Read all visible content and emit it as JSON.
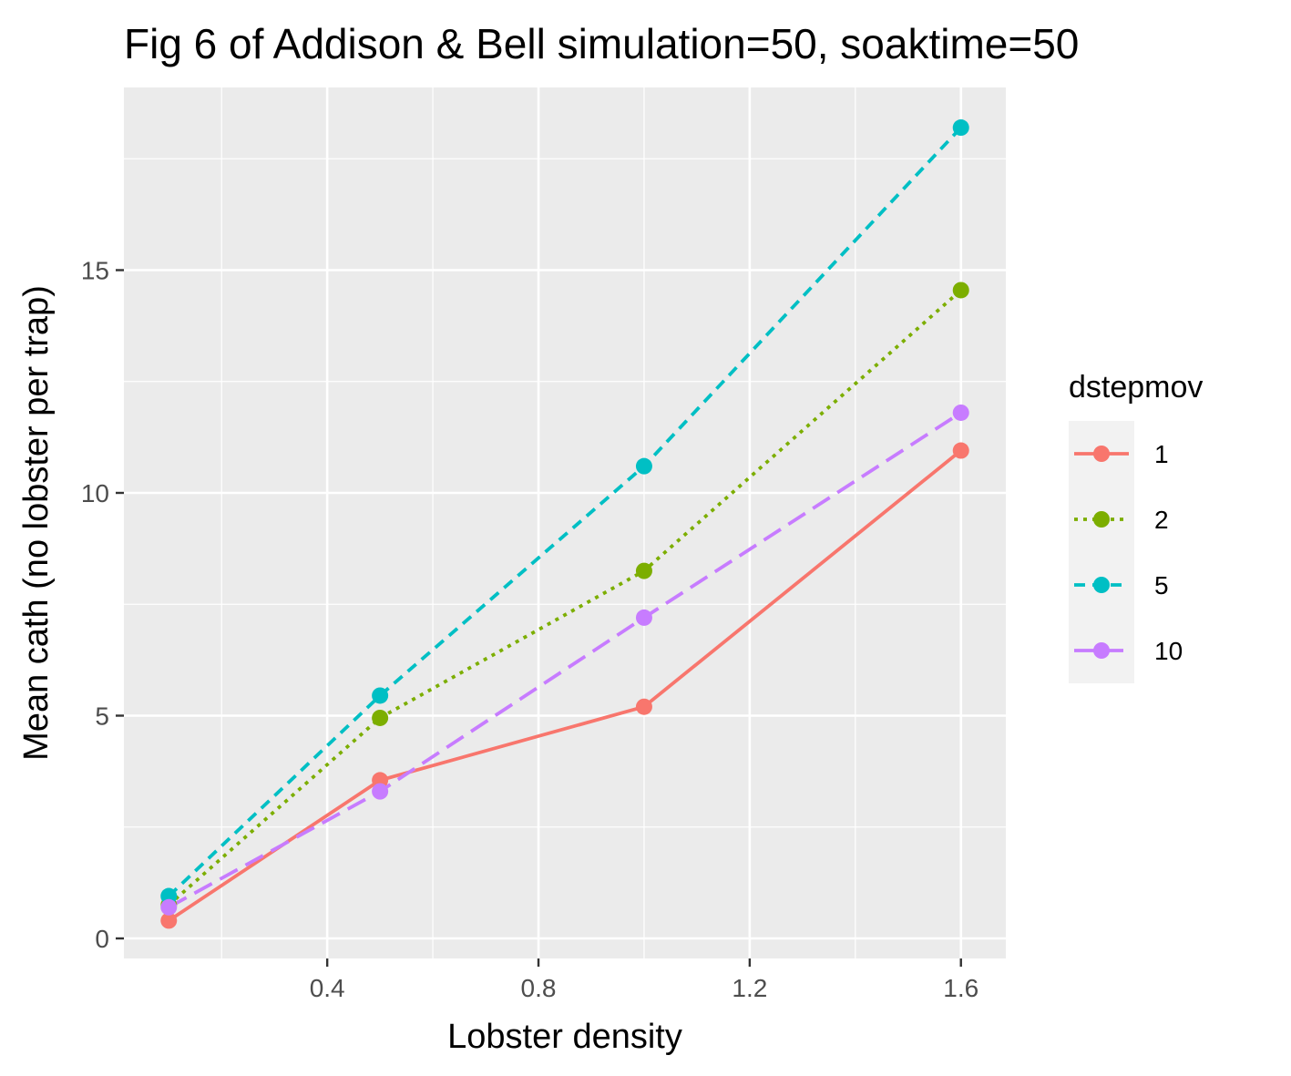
{
  "chart_data": {
    "type": "line",
    "title": "Fig 6 of Addison & Bell simulation=50, soaktime=50",
    "xlabel": "Lobster density",
    "ylabel": "Mean cath (no lobster per trap)",
    "xlim": [
      0.015,
      1.685
    ],
    "ylim": [
      -0.45,
      19.1
    ],
    "x_ticks": [
      0.4,
      0.8,
      1.2,
      1.6
    ],
    "x_tick_labels": [
      "0.4",
      "0.8",
      "1.2",
      "1.6"
    ],
    "x_minor_ticks": [
      0.2,
      0.6,
      1.0,
      1.4
    ],
    "y_ticks": [
      0,
      5,
      10,
      15
    ],
    "y_tick_labels": [
      "0",
      "5",
      "10",
      "15"
    ],
    "y_minor_ticks": [
      2.5,
      7.5,
      12.5,
      17.5
    ],
    "grid": true,
    "x": [
      0.1,
      0.5,
      1.0,
      1.6
    ],
    "legend": {
      "title": "dstepmov",
      "position": "right"
    },
    "series": [
      {
        "name": "1",
        "values": [
          0.4,
          3.55,
          5.2,
          10.95
        ],
        "color": "#F8766D",
        "linetype": "solid"
      },
      {
        "name": "2",
        "values": [
          0.75,
          4.95,
          8.25,
          14.55
        ],
        "color": "#7CAE00",
        "linetype": "dotted"
      },
      {
        "name": "5",
        "values": [
          0.95,
          5.45,
          10.6,
          18.2
        ],
        "color": "#00BFC4",
        "linetype": "dashed"
      },
      {
        "name": "10",
        "values": [
          0.7,
          3.3,
          7.2,
          11.8
        ],
        "color": "#C77CFF",
        "linetype": "longdash"
      }
    ]
  }
}
